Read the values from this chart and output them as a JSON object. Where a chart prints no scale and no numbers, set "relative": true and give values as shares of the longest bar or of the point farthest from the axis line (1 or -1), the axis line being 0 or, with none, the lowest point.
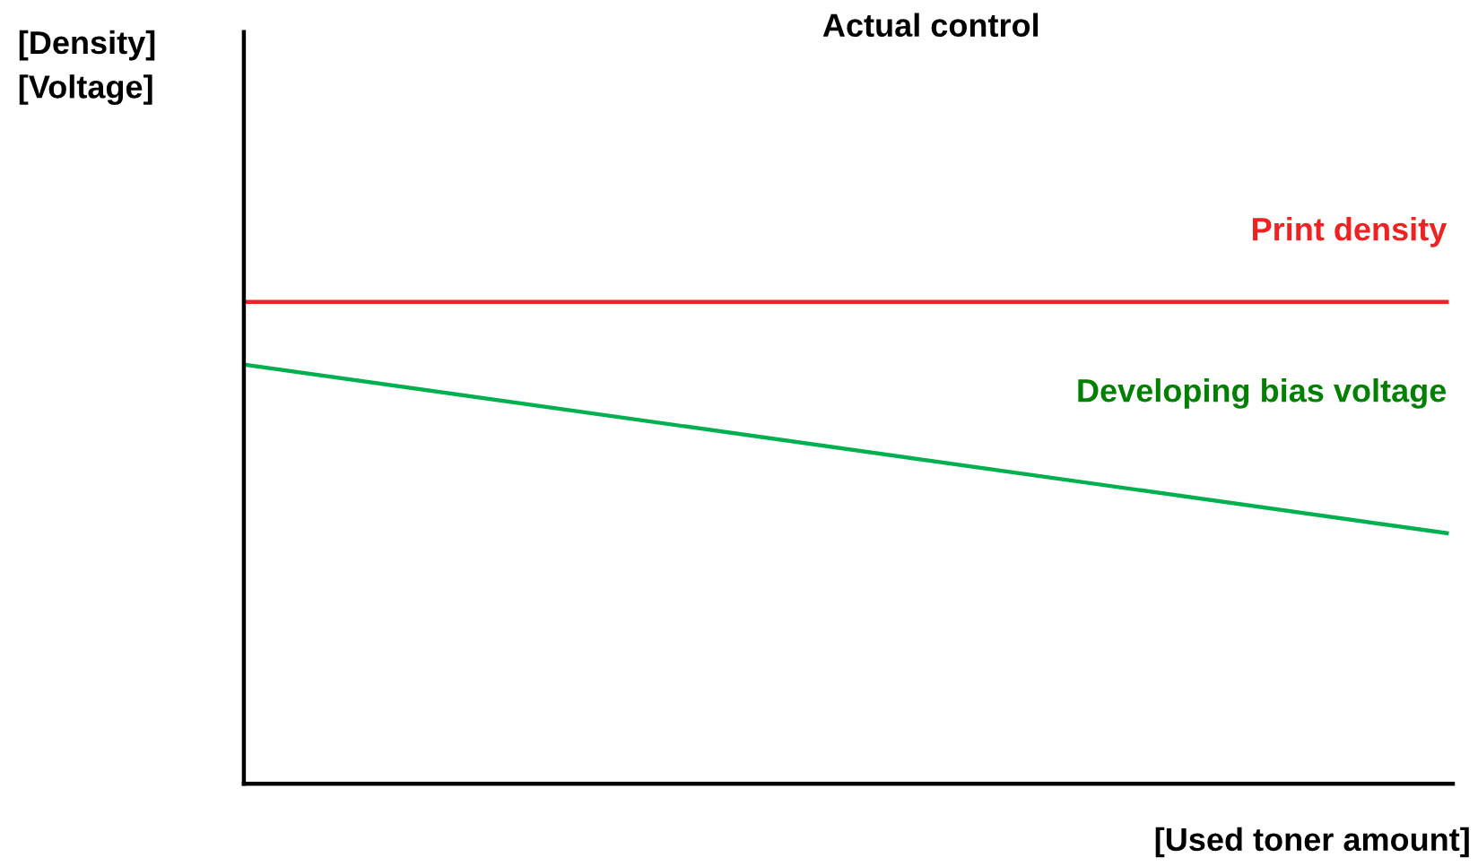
{
  "chart_data": {
    "type": "line",
    "title": "Actual control",
    "xlabel": "[Used toner amount]",
    "annotations": [
      "[Density]\n[Voltage]"
    ],
    "relative": true,
    "categories": [
      null,
      null
    ],
    "series": [
      {
        "name": "Print density",
        "color": "#ee2222",
        "values": [
          1,
          1
        ]
      },
      {
        "name": "Developing bias voltage",
        "color": "#00b050",
        "values": [
          0.87,
          0.52
        ]
      }
    ],
    "marker": "none",
    "line_style": "solid",
    "grid": false,
    "legend": false
  }
}
